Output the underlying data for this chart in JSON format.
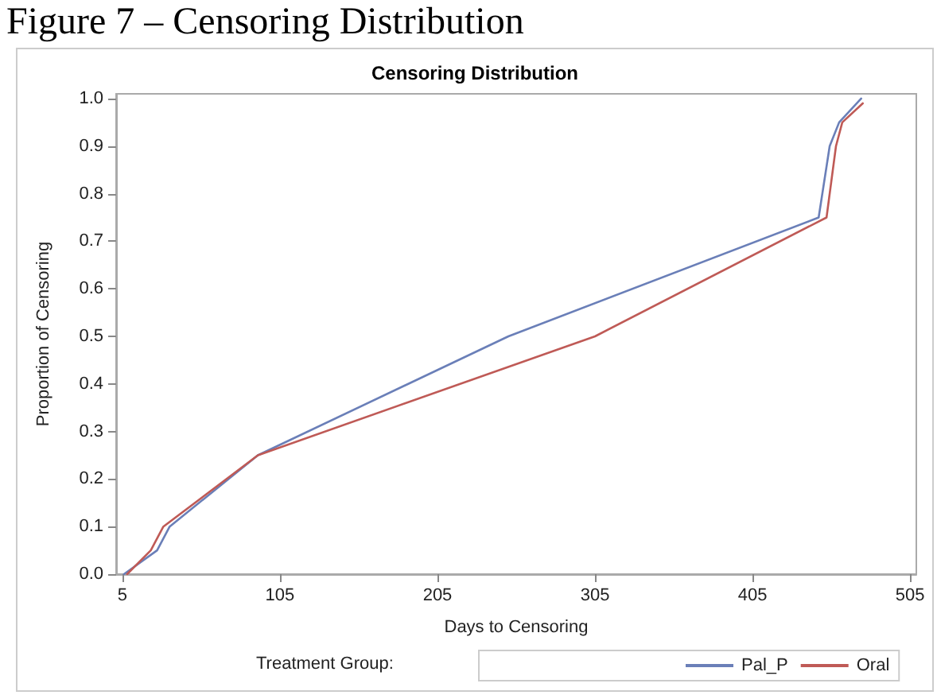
{
  "chart_data": {
    "type": "line",
    "title": "Figure 7 – Censoring Distribution",
    "subtitle": "Censoring Distribution",
    "xlabel": "Days to Censoring",
    "ylabel": "Proportion of Censoring",
    "legend_title": "Treatment Group:",
    "series": [
      {
        "name": "Pal_P",
        "color": "#6a7fb8",
        "x": [
          6,
          27,
          35,
          91,
          250,
          447,
          454,
          460,
          474
        ],
        "values": [
          0.0,
          0.05,
          0.1,
          0.25,
          0.5,
          0.75,
          0.9,
          0.95,
          1.0
        ]
      },
      {
        "name": "Oral",
        "color": "#bf5a56",
        "x": [
          8,
          23,
          31,
          91,
          305,
          452,
          458,
          462,
          475
        ],
        "values": [
          0.0,
          0.05,
          0.1,
          0.25,
          0.5,
          0.75,
          0.9,
          0.95,
          0.99
        ]
      }
    ],
    "xlim": [
      1,
      509
    ],
    "xticks": [
      5,
      105,
      205,
      305,
      405,
      505
    ],
    "ylim": [
      0,
      1.01
    ],
    "yticks": [
      {
        "value": 0,
        "label": "0.0"
      },
      {
        "value": 0.1,
        "label": "0.1"
      },
      {
        "value": 0.2,
        "label": "0.2"
      },
      {
        "value": 0.3,
        "label": "0.3"
      },
      {
        "value": 0.4,
        "label": "0.4"
      },
      {
        "value": 0.5,
        "label": "0.5"
      },
      {
        "value": 0.6,
        "label": "0.6"
      },
      {
        "value": 0.7,
        "label": "0.7"
      },
      {
        "value": 0.8,
        "label": "0.8"
      },
      {
        "value": 0.9,
        "label": "0.9"
      },
      {
        "value": 1.0,
        "label": "1.0"
      }
    ],
    "grid": false,
    "legend": "bottom",
    "marker": "none",
    "line_style": "solid"
  }
}
